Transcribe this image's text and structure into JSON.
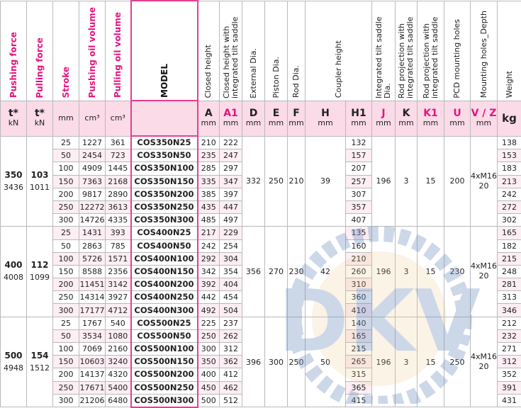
{
  "headers": [
    {
      "label": "Pushing force",
      "highlight": true,
      "symbol": "t*",
      "unit": "kN"
    },
    {
      "label": "Pulling force",
      "highlight": true,
      "symbol": "t*",
      "unit": "kN"
    },
    {
      "label": "Stroke",
      "highlight": true,
      "symbol": "",
      "unit": "mm"
    },
    {
      "label": "Pushing oil volume",
      "highlight": true,
      "symbol": "",
      "unit": "cm³"
    },
    {
      "label": "Pulling oil volume",
      "highlight": true,
      "symbol": "",
      "unit": "cm³"
    },
    {
      "label": "MODEL",
      "highlight": false,
      "symbol": "",
      "unit": ""
    },
    {
      "label": "Closed height",
      "highlight": false,
      "symbol": "A",
      "unit": "mm"
    },
    {
      "label": "Closed height with integrated tilt saddle",
      "highlight": false,
      "symbol": "A1",
      "symbol_pink": true,
      "unit": "mm"
    },
    {
      "label": "External Dia.",
      "highlight": false,
      "symbol": "D",
      "unit": "mm"
    },
    {
      "label": "Piston Dia.",
      "highlight": false,
      "symbol": "E",
      "unit": "mm"
    },
    {
      "label": "Rod Dia.",
      "highlight": false,
      "symbol": "F",
      "unit": "mm"
    },
    {
      "label": "Coupler height",
      "highlight": false,
      "symbol": "H",
      "unit": "mm",
      "sub": {
        "symbol": "H1",
        "unit": "mm"
      }
    },
    {
      "label": "Integrated tilt saddle Dia.",
      "highlight": false,
      "symbol": "J",
      "symbol_pink": true,
      "unit": "mm"
    },
    {
      "label": "Rod projection with integrated tilt saddle",
      "highlight": false,
      "symbol": "K",
      "unit": "mm"
    },
    {
      "label": "Rod projection with integrated tilt saddle",
      "highlight": false,
      "symbol": "K1",
      "symbol_pink": true,
      "unit": "mm"
    },
    {
      "label": "PCD mounting holes",
      "highlight": false,
      "symbol": "U",
      "symbol_pink": true,
      "unit": "mm"
    },
    {
      "label": "Mounting holes_Depth",
      "highlight": false,
      "symbol": "V / Z",
      "symbol_pink": true,
      "unit": "mm"
    },
    {
      "label": "Weight",
      "highlight": false,
      "symbol": "kg",
      "unit": ""
    }
  ],
  "groups": [
    {
      "push_t": "350",
      "push_kn": "3436",
      "pull_t": "103",
      "pull_kn": "1011",
      "D": "332",
      "E": "250",
      "F": "210",
      "H": "39",
      "J": "196",
      "K": "3",
      "K1": "15",
      "U": "200",
      "V": "4xM16",
      "Z": "20",
      "rows": [
        {
          "stroke": "25",
          "push_vol": "1227",
          "pull_vol": "361",
          "model": "COS350N25",
          "A": "210",
          "A1": "222",
          "H1": "132",
          "kg": "138"
        },
        {
          "stroke": "50",
          "push_vol": "2454",
          "pull_vol": "723",
          "model": "COS350N50",
          "A": "235",
          "A1": "247",
          "H1": "157",
          "kg": "153"
        },
        {
          "stroke": "100",
          "push_vol": "4909",
          "pull_vol": "1445",
          "model": "COS350N100",
          "A": "285",
          "A1": "297",
          "H1": "207",
          "kg": "183"
        },
        {
          "stroke": "150",
          "push_vol": "7363",
          "pull_vol": "2168",
          "model": "COS350N150",
          "A": "335",
          "A1": "347",
          "H1": "257",
          "kg": "213"
        },
        {
          "stroke": "200",
          "push_vol": "9817",
          "pull_vol": "2890",
          "model": "COS350N200",
          "A": "385",
          "A1": "397",
          "H1": "307",
          "kg": "242"
        },
        {
          "stroke": "250",
          "push_vol": "12272",
          "pull_vol": "3613",
          "model": "COS350N250",
          "A": "435",
          "A1": "447",
          "H1": "357",
          "kg": "272"
        },
        {
          "stroke": "300",
          "push_vol": "14726",
          "pull_vol": "4335",
          "model": "COS350N300",
          "A": "485",
          "A1": "497",
          "H1": "407",
          "kg": "302"
        }
      ]
    },
    {
      "push_t": "400",
      "push_kn": "4008",
      "pull_t": "112",
      "pull_kn": "1099",
      "D": "356",
      "E": "270",
      "F": "230",
      "H": "42",
      "J": "196",
      "K": "3",
      "K1": "15",
      "U": "230",
      "V": "4xM16",
      "Z": "20",
      "rows": [
        {
          "stroke": "25",
          "push_vol": "1431",
          "pull_vol": "393",
          "model": "COS400N25",
          "A": "217",
          "A1": "229",
          "H1": "135",
          "kg": "165"
        },
        {
          "stroke": "50",
          "push_vol": "2863",
          "pull_vol": "785",
          "model": "COS400N50",
          "A": "242",
          "A1": "254",
          "H1": "160",
          "kg": "182"
        },
        {
          "stroke": "100",
          "push_vol": "5726",
          "pull_vol": "1571",
          "model": "COS400N100",
          "A": "292",
          "A1": "304",
          "H1": "210",
          "kg": "215"
        },
        {
          "stroke": "150",
          "push_vol": "8588",
          "pull_vol": "2356",
          "model": "COS400N150",
          "A": "342",
          "A1": "354",
          "H1": "260",
          "kg": "248"
        },
        {
          "stroke": "200",
          "push_vol": "11451",
          "pull_vol": "3142",
          "model": "COS400N200",
          "A": "392",
          "A1": "404",
          "H1": "310",
          "kg": "281"
        },
        {
          "stroke": "250",
          "push_vol": "14314",
          "pull_vol": "3927",
          "model": "COS400N250",
          "A": "442",
          "A1": "454",
          "H1": "360",
          "kg": "313"
        },
        {
          "stroke": "300",
          "push_vol": "17177",
          "pull_vol": "4712",
          "model": "COS400N300",
          "A": "492",
          "A1": "504",
          "H1": "410",
          "kg": "346"
        }
      ]
    },
    {
      "push_t": "500",
      "push_kn": "4948",
      "pull_t": "154",
      "pull_kn": "1512",
      "D": "396",
      "E": "300",
      "F": "250",
      "H": "50",
      "J": "196",
      "K": "3",
      "K1": "15",
      "U": "250",
      "V": "4xM16",
      "Z": "20",
      "rows": [
        {
          "stroke": "25",
          "push_vol": "1767",
          "pull_vol": "540",
          "model": "COS500N25",
          "A": "225",
          "A1": "237",
          "H1": "140",
          "kg": "212"
        },
        {
          "stroke": "50",
          "push_vol": "3534",
          "pull_vol": "1080",
          "model": "COS500N50",
          "A": "250",
          "A1": "262",
          "H1": "165",
          "kg": "232"
        },
        {
          "stroke": "100",
          "push_vol": "7069",
          "pull_vol": "2160",
          "model": "COS500N100",
          "A": "300",
          "A1": "312",
          "H1": "215",
          "kg": "271"
        },
        {
          "stroke": "150",
          "push_vol": "10603",
          "pull_vol": "3240",
          "model": "COS500N150",
          "A": "350",
          "A1": "362",
          "H1": "265",
          "kg": "312"
        },
        {
          "stroke": "200",
          "push_vol": "14137",
          "pull_vol": "4320",
          "model": "COS500N200",
          "A": "400",
          "A1": "412",
          "H1": "315",
          "kg": "352"
        },
        {
          "stroke": "250",
          "push_vol": "17671",
          "pull_vol": "5400",
          "model": "COS500N250",
          "A": "450",
          "A1": "462",
          "H1": "365",
          "kg": "391"
        },
        {
          "stroke": "300",
          "push_vol": "21206",
          "pull_vol": "6480",
          "model": "COS500N300",
          "A": "500",
          "A1": "512",
          "H1": "415",
          "kg": "431"
        }
      ]
    }
  ],
  "watermark": {
    "text": "DKV",
    "colors": [
      "#e8c88a",
      "#6f8fc0"
    ]
  }
}
